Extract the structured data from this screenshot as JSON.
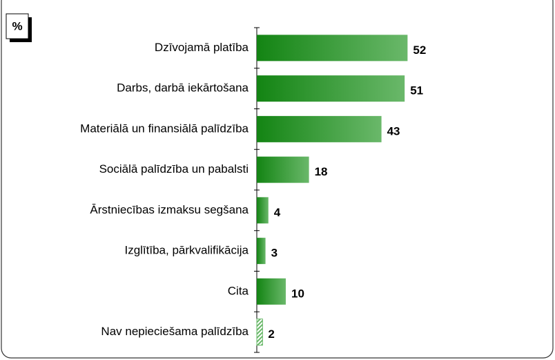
{
  "chart_data": {
    "type": "bar",
    "orientation": "horizontal",
    "unit_label": "%",
    "categories": [
      "Dzīvojamā platība",
      "Darbs, darbā iekārtošana",
      "Materiālā un finansiālā palīdzība",
      "Sociālā palīdzība un pabalsti",
      "Ārstniecības izmaksu segšana",
      "Izglītība, pārkvalifikācija",
      "Cita",
      "Nav nepieciešama palīdzība"
    ],
    "values": [
      52,
      51,
      43,
      18,
      4,
      3,
      10,
      2
    ],
    "bar_styles": [
      "gradient",
      "gradient",
      "gradient",
      "gradient",
      "gradient",
      "gradient",
      "gradient",
      "hatched"
    ],
    "color": "#138413",
    "color_light": "#6ab86a",
    "xlim": [
      0,
      100
    ]
  }
}
